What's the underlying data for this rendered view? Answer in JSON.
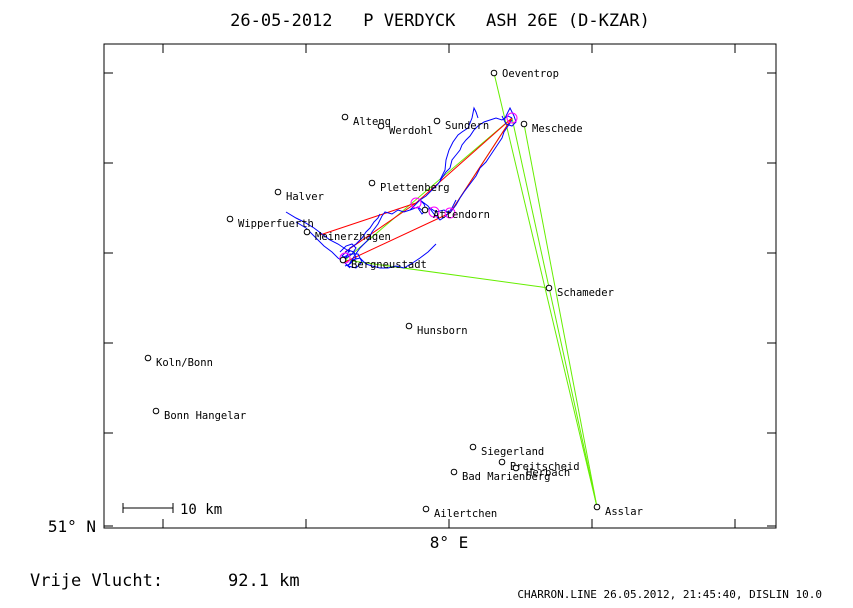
{
  "title": "26-05-2012   P VERDYCK   ASH 26E (D-KZAR)",
  "lat_label": "51° N",
  "lon_label": "8° E",
  "scale_label": "10 km",
  "distance": {
    "label": "Vrije Vlucht:",
    "value": "92.1 km"
  },
  "footer": "CHARRON.LINE 26.05.2012, 21:45:40, DISLIN 10.0",
  "colors": {
    "frame": "#000000",
    "track": "#0000ff",
    "task_red": "#ff0000",
    "task_green": "#66ee00",
    "turnpoint_circle": "#ff00ff",
    "waypoint_marker": "#000000"
  },
  "waypoints": [
    {
      "name": "Oeventrop"
    },
    {
      "name": "Meschede"
    },
    {
      "name": "Alteng"
    },
    {
      "name": "Werdohl"
    },
    {
      "name": "Sundern"
    },
    {
      "name": "Plettenberg"
    },
    {
      "name": "Halver"
    },
    {
      "name": "Wipperfuerth"
    },
    {
      "name": "Meinerzhagen"
    },
    {
      "name": "Attendorn"
    },
    {
      "name": "Bergneustadt"
    },
    {
      "name": "Schameder"
    },
    {
      "name": "Hunsborn"
    },
    {
      "name": "Koln/Bonn"
    },
    {
      "name": "Bonn Hangelar"
    },
    {
      "name": "Siegerland"
    },
    {
      "name": "Breitscheid"
    },
    {
      "name": "Herbach"
    },
    {
      "name": "Bad Marienberg"
    },
    {
      "name": "Ailertchen"
    },
    {
      "name": "Asslar"
    }
  ]
}
